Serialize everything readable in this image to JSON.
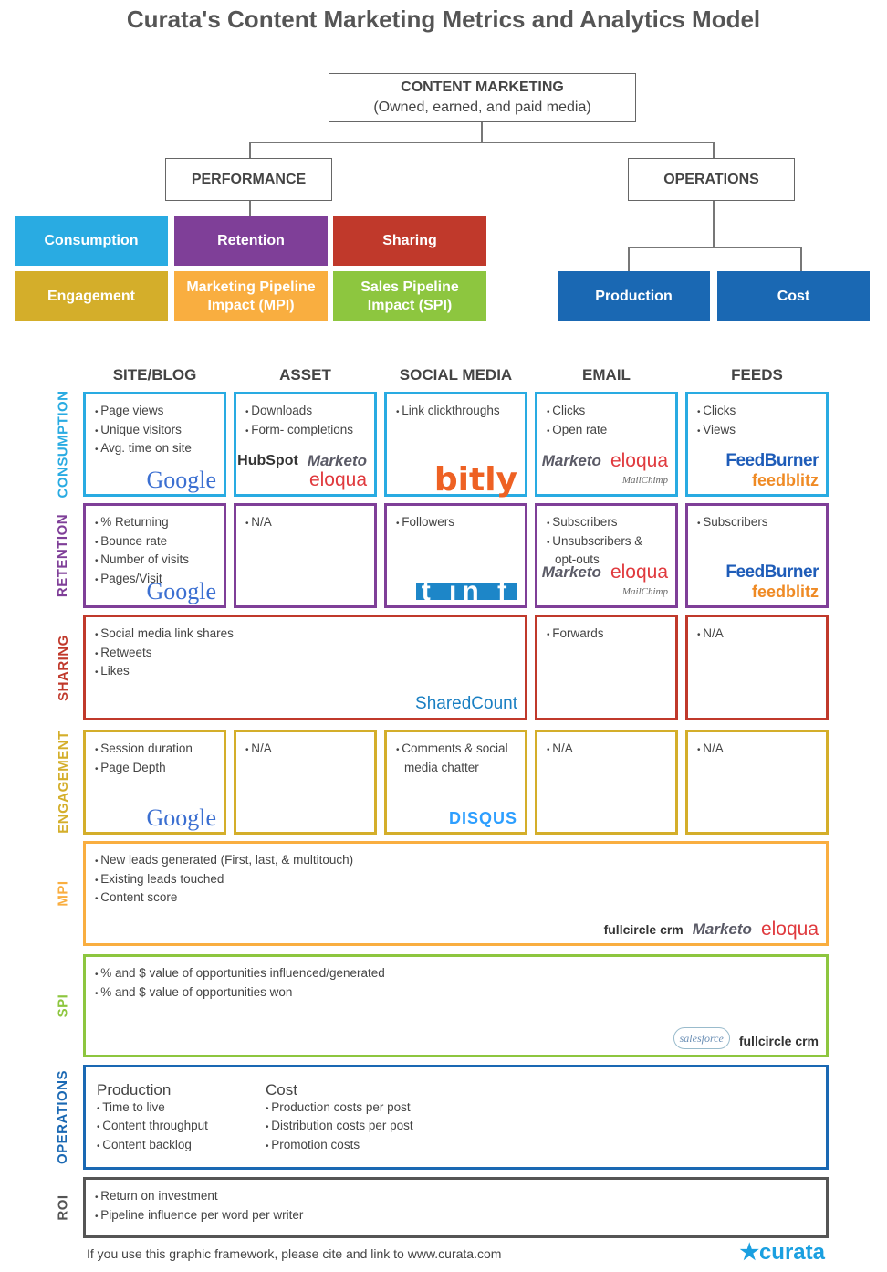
{
  "title": "Curata's Content Marketing Metrics and Analytics Model",
  "tree": {
    "root": {
      "label": "CONTENT MARKETING",
      "sub": "(Owned, earned, and paid media)"
    },
    "performance": "PERFORMANCE",
    "operations": "OPERATIONS",
    "performance_boxes": [
      {
        "label": "Consumption",
        "color": "#29abe2"
      },
      {
        "label": "Retention",
        "color": "#7f3f98"
      },
      {
        "label": "Sharing",
        "color": "#c0392b"
      },
      {
        "label": "Engagement",
        "color": "#d4ae2a"
      },
      {
        "label": "Marketing Pipeline Impact (MPI)",
        "color": "#f9ae40"
      },
      {
        "label": "Sales Pipeline Impact (SPI)",
        "color": "#8dc63f"
      }
    ],
    "operations_boxes": [
      {
        "label": "Production",
        "color": "#1a68b3"
      },
      {
        "label": "Cost",
        "color": "#1a68b3"
      }
    ]
  },
  "columns": [
    "SITE/BLOG",
    "ASSET",
    "SOCIAL MEDIA",
    "EMAIL",
    "FEEDS"
  ],
  "rows": [
    {
      "label": "CONSUMPTION",
      "color": "#29abe2",
      "cells": [
        {
          "items": [
            "Page views",
            "Unique visitors",
            "Avg. time on site"
          ],
          "logos": [
            {
              "name": "google",
              "text": "Google"
            }
          ]
        },
        {
          "items": [
            "Downloads",
            "Form- completions"
          ],
          "logos": [
            {
              "name": "hubspot",
              "text": "HubSpot"
            },
            {
              "name": "marketo",
              "text": "Marketo"
            },
            {
              "name": "eloqua",
              "text": "eloqua"
            }
          ]
        },
        {
          "items": [
            "Link clickthroughs"
          ],
          "logos": [
            {
              "name": "bitly",
              "text": "bitly"
            }
          ]
        },
        {
          "items": [
            "Clicks",
            "Open rate"
          ],
          "logos": [
            {
              "name": "marketo",
              "text": "Marketo"
            },
            {
              "name": "eloqua",
              "text": "eloqua"
            },
            {
              "name": "mailchimp",
              "text": "MailChimp"
            }
          ]
        },
        {
          "items": [
            "Clicks",
            "Views"
          ],
          "logos": [
            {
              "name": "feedburner",
              "text": "FeedBurner"
            },
            {
              "name": "feedblitz",
              "text": "feedblitz"
            }
          ]
        }
      ]
    },
    {
      "label": "RETENTION",
      "color": "#7f3f98",
      "cells": [
        {
          "items": [
            "% Returning",
            "Bounce rate",
            "Number of visits",
            "Pages/Visit"
          ],
          "logos": [
            {
              "name": "google",
              "text": "Google"
            }
          ]
        },
        {
          "items": [
            "N/A"
          ],
          "logos": []
        },
        {
          "items": [
            "Followers"
          ],
          "logos": [
            {
              "name": "social",
              "text": "t in f"
            }
          ]
        },
        {
          "items": [
            "Subscribers",
            "Unsubscribers & opt-outs"
          ],
          "logos": [
            {
              "name": "marketo",
              "text": "Marketo"
            },
            {
              "name": "eloqua",
              "text": "eloqua"
            },
            {
              "name": "mailchimp",
              "text": "MailChimp"
            }
          ]
        },
        {
          "items": [
            "Subscribers"
          ],
          "logos": [
            {
              "name": "feedburner",
              "text": "FeedBurner"
            },
            {
              "name": "feedblitz",
              "text": "feedblitz"
            }
          ]
        }
      ]
    },
    {
      "label": "SHARING",
      "color": "#c0392b",
      "cells": [
        {
          "items": [
            "Social media link shares",
            "Retweets",
            "Likes"
          ],
          "logos": [
            {
              "name": "sharedcount",
              "text": "SharedCount"
            }
          ]
        },
        {
          "items": [
            "Forwards"
          ],
          "logos": []
        },
        {
          "items": [
            "N/A"
          ],
          "logos": []
        }
      ]
    },
    {
      "label": "ENGAGEMENT",
      "color": "#d4ae2a",
      "cells": [
        {
          "items": [
            "Session duration",
            "Page Depth"
          ],
          "logos": [
            {
              "name": "google",
              "text": "Google"
            }
          ]
        },
        {
          "items": [
            "N/A"
          ],
          "logos": []
        },
        {
          "items": [
            "Comments & social media chatter"
          ],
          "logos": [
            {
              "name": "disqus",
              "text": "DISQUS"
            }
          ]
        },
        {
          "items": [
            "N/A"
          ],
          "logos": []
        },
        {
          "items": [
            "N/A"
          ],
          "logos": []
        }
      ]
    },
    {
      "label": "MPI",
      "color": "#f9ae40",
      "cells": [
        {
          "items": [
            "New leads generated (First, last, & multitouch)",
            "Existing leads touched",
            "Content score"
          ],
          "logos": [
            {
              "name": "fullcircle",
              "text": "fullcircle crm"
            },
            {
              "name": "marketo",
              "text": "Marketo"
            },
            {
              "name": "eloqua",
              "text": "eloqua"
            }
          ]
        }
      ]
    },
    {
      "label": "SPI",
      "color": "#8dc63f",
      "cells": [
        {
          "items": [
            "% and $ value of opportunities influenced/generated",
            "% and $ value of opportunities won"
          ],
          "logos": [
            {
              "name": "salesforce",
              "text": "salesforce"
            },
            {
              "name": "fullcircle",
              "text": "fullcircle crm"
            }
          ]
        }
      ]
    },
    {
      "label": "OPERATIONS",
      "color": "#1a68b3",
      "groups": [
        {
          "heading": "Production",
          "items": [
            "Time to live",
            "Content throughput",
            "Content backlog"
          ]
        },
        {
          "heading": "Cost",
          "items": [
            "Production costs per post",
            "Distribution costs per post",
            "Promotion costs"
          ]
        }
      ]
    },
    {
      "label": "ROI",
      "color": "#555555",
      "cells": [
        {
          "items": [
            "Return on investment",
            "Pipeline influence per word per writer"
          ],
          "logos": []
        }
      ]
    }
  ],
  "footer": "If you use this graphic framework, please cite and link to www.curata.com",
  "brand_logo": "curata"
}
